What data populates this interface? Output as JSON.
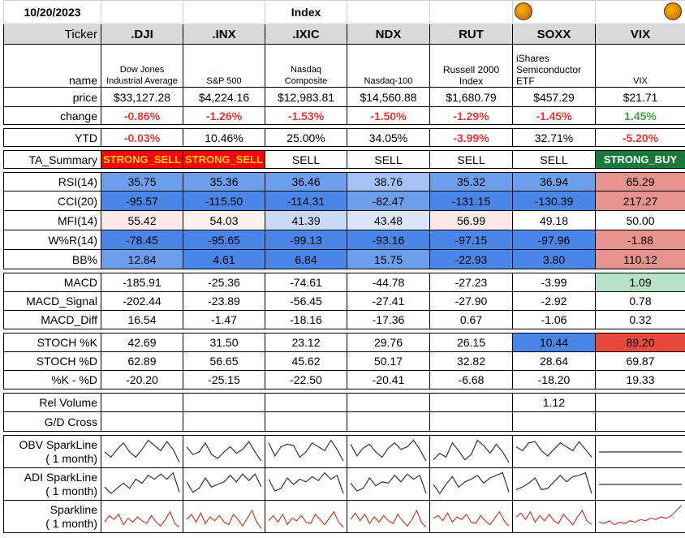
{
  "date": "10/20/2023",
  "section_title": "Index",
  "labels": {
    "ticker": "Ticker",
    "name": "name",
    "price": "price",
    "change": "change",
    "ytd": "YTD",
    "ta_summary": "TA_Summary",
    "rsi": "RSI(14)",
    "cci": "CCI(20)",
    "mfi": "MFI(14)",
    "wr": "W%R(14)",
    "bb": "BB%",
    "macd": "MACD",
    "macd_signal": "MACD_Signal",
    "macd_diff": "MACD_Diff",
    "stoch_k": "STOCH %K",
    "stoch_d": "STOCH %D",
    "k_minus_d": "%K - %D",
    "rel_volume": "Rel Volume",
    "gd_cross": "G/D Cross",
    "obv_spark": "OBV SparkLine\n( 1 month)",
    "adi_spark": "ADI SparkLine\n( 1 month)",
    "price_spark": "Sparkline\n( 1 month)"
  },
  "columns": [
    {
      "ticker": ".DJI",
      "name": "Dow Jones Industrial Average",
      "price": "$33,127.28",
      "change": "-0.86%",
      "ytd": "-0.03%",
      "ta": "STRONG_SELL",
      "rsi": "35.75",
      "cci": "-95.57",
      "mfi": "55.42",
      "wr": "-78.45",
      "bb": "12.84",
      "macd": "-185.91",
      "macd_signal": "-202.44",
      "macd_diff": "16.54",
      "stoch_k": "42.69",
      "stoch_d": "62.89",
      "k_minus_d": "-20.20",
      "rel_volume": ""
    },
    {
      "ticker": ".INX",
      "name": "S&P 500",
      "price": "$4,224.16",
      "change": "-1.26%",
      "ytd": "10.46%",
      "ta": "STRONG_SELL",
      "rsi": "35.36",
      "cci": "-115.50",
      "mfi": "54.03",
      "wr": "-95.65",
      "bb": "4.61",
      "macd": "-25.36",
      "macd_signal": "-23.89",
      "macd_diff": "-1.47",
      "stoch_k": "31.50",
      "stoch_d": "56.65",
      "k_minus_d": "-25.15",
      "rel_volume": ""
    },
    {
      "ticker": ".IXIC",
      "name": "Nasdaq Composite",
      "price": "$12,983.81",
      "change": "-1.53%",
      "ytd": "25.00%",
      "ta": "SELL",
      "rsi": "36.46",
      "cci": "-114.31",
      "mfi": "41.39",
      "wr": "-99.13",
      "bb": "6.84",
      "macd": "-74.61",
      "macd_signal": "-56.45",
      "macd_diff": "-18.16",
      "stoch_k": "23.12",
      "stoch_d": "45.62",
      "k_minus_d": "-22.50",
      "rel_volume": ""
    },
    {
      "ticker": "NDX",
      "name": "Nasdaq-100",
      "price": "$14,560.88",
      "change": "-1.50%",
      "ytd": "34.05%",
      "ta": "SELL",
      "rsi": "38.76",
      "cci": "-82.47",
      "mfi": "43.48",
      "wr": "-93.16",
      "bb": "15.75",
      "macd": "-44.78",
      "macd_signal": "-27.41",
      "macd_diff": "-17.36",
      "stoch_k": "29.76",
      "stoch_d": "50.17",
      "k_minus_d": "-20.41",
      "rel_volume": ""
    },
    {
      "ticker": "RUT",
      "name": "Russell 2000 Index",
      "price": "$1,680.79",
      "change": "-1.29%",
      "ytd": "-3.99%",
      "ta": "SELL",
      "rsi": "35.32",
      "cci": "-131.15",
      "mfi": "56.99",
      "wr": "-97.15",
      "bb": "-22.93",
      "macd": "-27.23",
      "macd_signal": "-27.90",
      "macd_diff": "0.67",
      "stoch_k": "26.15",
      "stoch_d": "32.82",
      "k_minus_d": "-6.68",
      "rel_volume": ""
    },
    {
      "ticker": "SOXX",
      "name": "iShares Semiconductor ETF",
      "price": "$457.29",
      "change": "-1.45%",
      "ytd": "32.71%",
      "ta": "SELL",
      "rsi": "36.94",
      "cci": "-130.39",
      "mfi": "49.18",
      "wr": "-97.96",
      "bb": "3.80",
      "macd": "-3.99",
      "macd_signal": "-2.92",
      "macd_diff": "-1.06",
      "stoch_k": "10.44",
      "stoch_d": "28.64",
      "k_minus_d": "-18.20",
      "rel_volume": "1.12"
    },
    {
      "ticker": "VIX",
      "name": "VIX",
      "price": "$21.71",
      "change": "1.45%",
      "ytd": "-5.20%",
      "ta": "STRONG_BUY",
      "rsi": "65.29",
      "cci": "217.27",
      "mfi": "50.00",
      "wr": "-1.88",
      "bb": "110.12",
      "macd": "1.09",
      "macd_signal": "0.78",
      "macd_diff": "0.32",
      "stoch_k": "89.20",
      "stoch_d": "69.87",
      "k_minus_d": "19.33",
      "rel_volume": ""
    }
  ],
  "colors": {
    "header_bg": "#d9d9d9",
    "negative": "#e53935",
    "positive": "#43a047",
    "strong_sell_bg": "#ff0000",
    "strong_sell_text": "#ffd600",
    "strong_buy_bg": "#1b7a3a",
    "blue_strong": "#4a86e8",
    "blue_mid": "#6d9eeb",
    "blue_light": "#a4c2f4",
    "blue_pale": "#c9daf8",
    "red_light": "#e6938c",
    "red_pale": "#fce8e6",
    "red_strong": "#e8493a",
    "green_pale": "#b7e1c7",
    "obv_line": "#333333",
    "price_line": "#cc3c2c"
  },
  "cell_colors": {
    "rsi": [
      "#6d9eeb",
      "#6d9eeb",
      "#6d9eeb",
      "#a4c2f4",
      "#6d9eeb",
      "#6d9eeb",
      "#e6938c"
    ],
    "cci": [
      "#4a86e8",
      "#4a86e8",
      "#4a86e8",
      "#6d9eeb",
      "#4a86e8",
      "#4a86e8",
      "#e6938c"
    ],
    "mfi": [
      "#fce8e6",
      "#fdf0ef",
      "#c9daf8",
      "#dbe6fa",
      "#fce8e6",
      "#fff",
      "#fff"
    ],
    "wr": [
      "#4a86e8",
      "#4a86e8",
      "#4a86e8",
      "#4a86e8",
      "#4a86e8",
      "#4a86e8",
      "#e6938c"
    ],
    "bb": [
      "#6d9eeb",
      "#4a86e8",
      "#4a86e8",
      "#6d9eeb",
      "#4a86e8",
      "#4a86e8",
      "#e6938c"
    ],
    "macd": [
      "#fff",
      "#fff",
      "#fff",
      "#fff",
      "#fff",
      "#fff",
      "#b7e1c7"
    ],
    "stoch_k": [
      "#fff",
      "#fff",
      "#fff",
      "#fff",
      "#fff",
      "#4a86e8",
      "#e8493a"
    ]
  },
  "sparklines": {
    "obv": [
      [
        0.5,
        0.3,
        0.6,
        0.85,
        0.5,
        0.3,
        0.6,
        0.95,
        0.75,
        0.55,
        0.9,
        0.6,
        0.1
      ],
      [
        0.7,
        0.4,
        0.5,
        0.85,
        0.4,
        0.25,
        0.5,
        0.7,
        0.45,
        0.6,
        0.9,
        0.5,
        0.15
      ],
      [
        0.85,
        0.35,
        0.7,
        0.8,
        0.75,
        0.3,
        0.5,
        0.85,
        0.7,
        0.55,
        0.95,
        0.6,
        0.15
      ],
      [
        0.8,
        0.35,
        0.65,
        0.8,
        0.5,
        0.3,
        0.65,
        0.85,
        0.6,
        0.7,
        0.95,
        0.6,
        0.15
      ],
      [
        0.2,
        0.45,
        0.3,
        0.85,
        0.55,
        0.2,
        0.4,
        0.95,
        0.75,
        0.45,
        0.8,
        0.5,
        0.1
      ],
      [
        0.7,
        0.55,
        0.85,
        0.9,
        0.55,
        0.35,
        0.6,
        0.85,
        0.7,
        0.55,
        0.9,
        0.6,
        0.3
      ],
      [
        0.5,
        0.5,
        0.5,
        0.5,
        0.5,
        0.5,
        0.5,
        0.5,
        0.5,
        0.5,
        0.5,
        0.5,
        0.5
      ]
    ],
    "adi": [
      [
        0.4,
        0.15,
        0.35,
        0.55,
        0.35,
        0.7,
        0.55,
        0.85,
        0.7,
        0.9,
        0.7,
        0.95,
        0.2
      ],
      [
        0.6,
        0.2,
        0.35,
        0.75,
        0.4,
        0.5,
        0.6,
        0.85,
        0.6,
        0.9,
        0.65,
        0.9,
        0.4
      ],
      [
        0.7,
        0.25,
        0.35,
        0.75,
        0.5,
        0.7,
        0.6,
        0.8,
        0.65,
        0.95,
        0.7,
        0.85,
        0.15
      ],
      [
        0.55,
        0.25,
        0.35,
        0.75,
        0.45,
        0.6,
        0.55,
        0.85,
        0.6,
        0.9,
        0.7,
        0.85,
        0.15
      ],
      [
        0.5,
        0.15,
        0.5,
        0.8,
        0.4,
        0.6,
        0.7,
        0.85,
        0.55,
        0.75,
        0.85,
        0.95,
        0.2
      ],
      [
        0.3,
        0.4,
        0.55,
        0.75,
        0.3,
        0.35,
        0.6,
        0.85,
        0.6,
        0.8,
        0.85,
        0.95,
        0.15
      ],
      [
        0.5,
        0.5,
        0.5,
        0.5,
        0.5,
        0.5,
        0.5,
        0.5,
        0.5,
        0.5,
        0.5,
        0.5,
        0.5
      ]
    ],
    "price": [
      [
        0.3,
        0.55,
        0.4,
        0.6,
        0.2,
        0.45,
        0.3,
        0.5,
        0.35,
        0.25,
        0.55,
        0.3,
        0.15,
        0.4,
        0.7,
        0.25,
        0.1
      ],
      [
        0.4,
        0.6,
        0.3,
        0.65,
        0.25,
        0.5,
        0.35,
        0.55,
        0.3,
        0.2,
        0.6,
        0.4,
        0.15,
        0.45,
        0.75,
        0.3,
        0.05
      ],
      [
        0.35,
        0.55,
        0.3,
        0.6,
        0.2,
        0.45,
        0.35,
        0.55,
        0.3,
        0.25,
        0.6,
        0.4,
        0.2,
        0.45,
        0.7,
        0.3,
        0.1
      ],
      [
        0.4,
        0.65,
        0.35,
        0.6,
        0.25,
        0.5,
        0.3,
        0.55,
        0.35,
        0.25,
        0.6,
        0.35,
        0.15,
        0.4,
        0.75,
        0.3,
        0.1
      ],
      [
        0.45,
        0.55,
        0.35,
        0.65,
        0.3,
        0.5,
        0.4,
        0.6,
        0.3,
        0.25,
        0.55,
        0.35,
        0.2,
        0.45,
        0.7,
        0.35,
        0.15
      ],
      [
        0.5,
        0.65,
        0.4,
        0.7,
        0.3,
        0.55,
        0.35,
        0.6,
        0.35,
        0.25,
        0.6,
        0.4,
        0.2,
        0.5,
        0.75,
        0.35,
        0.2
      ],
      [
        0.3,
        0.25,
        0.35,
        0.2,
        0.3,
        0.25,
        0.35,
        0.3,
        0.4,
        0.35,
        0.45,
        0.4,
        0.5,
        0.45,
        0.55,
        0.75,
        0.95
      ]
    ]
  }
}
